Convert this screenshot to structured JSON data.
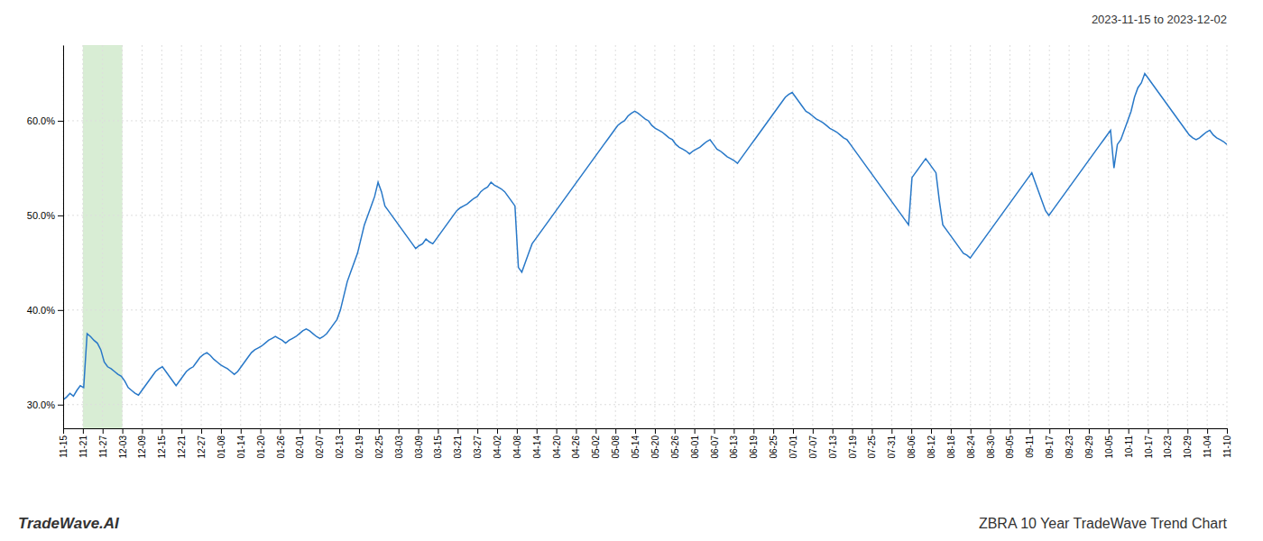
{
  "chart_data": {
    "type": "line",
    "title": "ZBRA 10 Year TradeWave Trend Chart",
    "subtitle": "2023-11-15 to 2023-12-02",
    "annotations": [
      {
        "text": "TradeWave.AI"
      }
    ],
    "color": "#2878c8",
    "grid": true,
    "xlim": [
      0,
      59
    ],
    "xticks": [
      {
        "value": 0,
        "label": "11-15"
      },
      {
        "value": 1,
        "label": "11-21"
      },
      {
        "value": 2,
        "label": "11-27"
      },
      {
        "value": 3,
        "label": "12-03"
      },
      {
        "value": 4,
        "label": "12-09"
      },
      {
        "value": 5,
        "label": "12-15"
      },
      {
        "value": 6,
        "label": "12-21"
      },
      {
        "value": 7,
        "label": "12-27"
      },
      {
        "value": 8,
        "label": "01-08"
      },
      {
        "value": 9,
        "label": "01-14"
      },
      {
        "value": 10,
        "label": "01-20"
      },
      {
        "value": 11,
        "label": "01-26"
      },
      {
        "value": 12,
        "label": "02-01"
      },
      {
        "value": 13,
        "label": "02-07"
      },
      {
        "value": 14,
        "label": "02-13"
      },
      {
        "value": 15,
        "label": "02-19"
      },
      {
        "value": 16,
        "label": "02-25"
      },
      {
        "value": 17,
        "label": "03-03"
      },
      {
        "value": 18,
        "label": "03-09"
      },
      {
        "value": 19,
        "label": "03-15"
      },
      {
        "value": 20,
        "label": "03-21"
      },
      {
        "value": 21,
        "label": "03-27"
      },
      {
        "value": 22,
        "label": "04-02"
      },
      {
        "value": 23,
        "label": "04-08"
      },
      {
        "value": 24,
        "label": "04-14"
      },
      {
        "value": 25,
        "label": "04-20"
      },
      {
        "value": 26,
        "label": "04-26"
      },
      {
        "value": 27,
        "label": "05-02"
      },
      {
        "value": 28,
        "label": "05-08"
      },
      {
        "value": 29,
        "label": "05-14"
      },
      {
        "value": 30,
        "label": "05-20"
      },
      {
        "value": 31,
        "label": "05-26"
      },
      {
        "value": 32,
        "label": "06-01"
      },
      {
        "value": 33,
        "label": "06-07"
      },
      {
        "value": 34,
        "label": "06-13"
      },
      {
        "value": 35,
        "label": "06-19"
      },
      {
        "value": 36,
        "label": "06-25"
      },
      {
        "value": 37,
        "label": "07-01"
      },
      {
        "value": 38,
        "label": "07-07"
      },
      {
        "value": 39,
        "label": "07-13"
      },
      {
        "value": 40,
        "label": "07-19"
      },
      {
        "value": 41,
        "label": "07-25"
      },
      {
        "value": 42,
        "label": "07-31"
      },
      {
        "value": 43,
        "label": "08-06"
      },
      {
        "value": 44,
        "label": "08-12"
      },
      {
        "value": 45,
        "label": "08-18"
      },
      {
        "value": 46,
        "label": "08-24"
      },
      {
        "value": 47,
        "label": "08-30"
      },
      {
        "value": 48,
        "label": "09-05"
      },
      {
        "value": 49,
        "label": "09-11"
      },
      {
        "value": 50,
        "label": "09-17"
      },
      {
        "value": 51,
        "label": "09-23"
      },
      {
        "value": 52,
        "label": "09-29"
      },
      {
        "value": 53,
        "label": "10-05"
      },
      {
        "value": 54,
        "label": "10-11"
      },
      {
        "value": 55,
        "label": "10-17"
      },
      {
        "value": 56,
        "label": "10-23"
      },
      {
        "value": 57,
        "label": "10-29"
      },
      {
        "value": 58,
        "label": "11-04"
      },
      {
        "value": 59,
        "label": "11-10"
      }
    ],
    "ylim": [
      27.5,
      68.0
    ],
    "yticks": [
      {
        "value": 30.0,
        "label": "30.0%"
      },
      {
        "value": 40.0,
        "label": "40.0%"
      },
      {
        "value": 50.0,
        "label": "50.0%"
      },
      {
        "value": 60.0,
        "label": "60.0%"
      }
    ],
    "spans": [
      {
        "x0": 1,
        "x1": 3,
        "color": "#d8edd4"
      }
    ],
    "values": [
      30.5,
      30.8,
      31.2,
      30.9,
      31.5,
      32.0,
      31.8,
      37.5,
      37.2,
      36.8,
      36.5,
      35.8,
      34.5,
      34.0,
      33.8,
      33.5,
      33.2,
      33.0,
      32.5,
      31.8,
      31.5,
      31.2,
      31.0,
      31.5,
      32.0,
      32.5,
      33.0,
      33.5,
      33.8,
      34.0,
      33.5,
      33.0,
      32.5,
      32.0,
      32.5,
      33.0,
      33.5,
      33.8,
      34.0,
      34.5,
      35.0,
      35.3,
      35.5,
      35.2,
      34.8,
      34.5,
      34.2,
      34.0,
      33.8,
      33.5,
      33.2,
      33.5,
      34.0,
      34.5,
      35.0,
      35.5,
      35.8,
      36.0,
      36.2,
      36.5,
      36.8,
      37.0,
      37.2,
      37.0,
      36.8,
      36.5,
      36.8,
      37.0,
      37.2,
      37.5,
      37.8,
      38.0,
      37.8,
      37.5,
      37.2,
      37.0,
      37.2,
      37.5,
      38.0,
      38.5,
      39.0,
      40.0,
      41.5,
      43.0,
      44.0,
      45.0,
      46.0,
      47.5,
      49.0,
      50.0,
      51.0,
      52.0,
      53.5,
      52.5,
      51.0,
      50.5,
      50.0,
      49.5,
      49.0,
      48.5,
      48.0,
      47.5,
      47.0,
      46.5,
      46.8,
      47.0,
      47.5,
      47.2,
      47.0,
      47.5,
      48.0,
      48.5,
      49.0,
      49.5,
      50.0,
      50.5,
      50.8,
      51.0,
      51.2,
      51.5,
      51.8,
      52.0,
      52.5,
      52.8,
      53.0,
      53.5,
      53.2,
      53.0,
      52.8,
      52.5,
      52.0,
      51.5,
      51.0,
      44.5,
      44.0,
      45.0,
      46.0,
      47.0,
      47.5,
      48.0,
      48.5,
      49.0,
      49.5,
      50.0,
      50.5,
      51.0,
      51.5,
      52.0,
      52.5,
      53.0,
      53.5,
      54.0,
      54.5,
      55.0,
      55.5,
      56.0,
      56.5,
      57.0,
      57.5,
      58.0,
      58.5,
      59.0,
      59.5,
      59.8,
      60.0,
      60.5,
      60.8,
      61.0,
      60.8,
      60.5,
      60.2,
      60.0,
      59.5,
      59.2,
      59.0,
      58.8,
      58.5,
      58.2,
      58.0,
      57.5,
      57.2,
      57.0,
      56.8,
      56.5,
      56.8,
      57.0,
      57.2,
      57.5,
      57.8,
      58.0,
      57.5,
      57.0,
      56.8,
      56.5,
      56.2,
      56.0,
      55.8,
      55.5,
      56.0,
      56.5,
      57.0,
      57.5,
      58.0,
      58.5,
      59.0,
      59.5,
      60.0,
      60.5,
      61.0,
      61.5,
      62.0,
      62.5,
      62.8,
      63.0,
      62.5,
      62.0,
      61.5,
      61.0,
      60.8,
      60.5,
      60.2,
      60.0,
      59.8,
      59.5,
      59.2,
      59.0,
      58.8,
      58.5,
      58.2,
      58.0,
      57.5,
      57.0,
      56.5,
      56.0,
      55.5,
      55.0,
      54.5,
      54.0,
      53.5,
      53.0,
      52.5,
      52.0,
      51.5,
      51.0,
      50.5,
      50.0,
      49.5,
      49.0,
      54.0,
      54.5,
      55.0,
      55.5,
      56.0,
      55.5,
      55.0,
      54.5,
      51.5,
      49.0,
      48.5,
      48.0,
      47.5,
      47.0,
      46.5,
      46.0,
      45.8,
      45.5,
      46.0,
      46.5,
      47.0,
      47.5,
      48.0,
      48.5,
      49.0,
      49.5,
      50.0,
      50.5,
      51.0,
      51.5,
      52.0,
      52.5,
      53.0,
      53.5,
      54.0,
      54.5,
      53.5,
      52.5,
      51.5,
      50.5,
      50.0,
      50.5,
      51.0,
      51.5,
      52.0,
      52.5,
      53.0,
      53.5,
      54.0,
      54.5,
      55.0,
      55.5,
      56.0,
      56.5,
      57.0,
      57.5,
      58.0,
      58.5,
      59.0,
      55.0,
      57.5,
      58.0,
      59.0,
      60.0,
      61.0,
      62.5,
      63.5,
      64.0,
      65.0,
      64.5,
      64.0,
      63.5,
      63.0,
      62.5,
      62.0,
      61.5,
      61.0,
      60.5,
      60.0,
      59.5,
      59.0,
      58.5,
      58.2,
      58.0,
      58.2,
      58.5,
      58.8,
      59.0,
      58.5,
      58.2,
      58.0,
      57.8,
      57.5
    ]
  }
}
